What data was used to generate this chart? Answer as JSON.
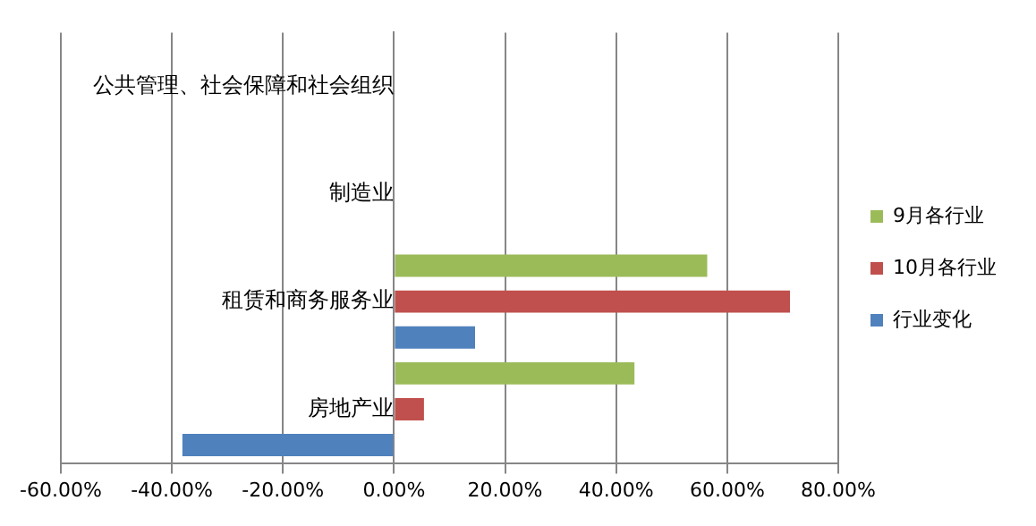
{
  "chart_data": {
    "type": "bar",
    "orientation": "horizontal",
    "categories": [
      "公共管理、社会保障和社会组织",
      "制造业",
      "租赁和商务服务业",
      "房地产业"
    ],
    "series": [
      {
        "name": "9月各行业",
        "color": "#9bbb59",
        "values": [
          null,
          null,
          56.4,
          43.3
        ]
      },
      {
        "name": "10月各行业",
        "color": "#c0504d",
        "values": [
          null,
          null,
          71.3,
          5.4
        ]
      },
      {
        "name": "行业变化",
        "color": "#4f81bd",
        "values": [
          null,
          null,
          14.6,
          -38.1
        ]
      }
    ],
    "xlim": [
      -60,
      80
    ],
    "xticks": [
      {
        "value": -60,
        "label": "-60.00%"
      },
      {
        "value": -40,
        "label": "-40.00%"
      },
      {
        "value": -20,
        "label": "-20.00%"
      },
      {
        "value": 0,
        "label": "0.00%"
      },
      {
        "value": 20,
        "label": "20.00%"
      },
      {
        "value": 40,
        "label": "40.00%"
      },
      {
        "value": 60,
        "label": "60.00%"
      },
      {
        "value": 80,
        "label": "80.00%"
      }
    ],
    "grid": "x",
    "legend": "right"
  }
}
